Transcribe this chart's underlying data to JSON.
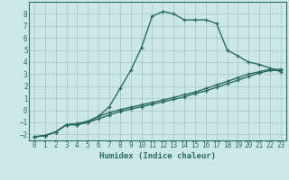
{
  "xlabel": "Humidex (Indice chaleur)",
  "bg_color": "#cce8e6",
  "line_color": "#2a6b64",
  "grid_color": "#b0cecc",
  "xlim": [
    -0.5,
    23.5
  ],
  "ylim": [
    -2.5,
    9.0
  ],
  "xticks": [
    0,
    1,
    2,
    3,
    4,
    5,
    6,
    7,
    8,
    9,
    10,
    11,
    12,
    13,
    14,
    15,
    16,
    17,
    18,
    19,
    20,
    21,
    22,
    23
  ],
  "yticks": [
    -2,
    -1,
    0,
    1,
    2,
    3,
    4,
    5,
    6,
    7,
    8
  ],
  "line1_x": [
    0,
    1,
    2,
    3,
    4,
    5,
    6,
    7,
    8,
    9,
    10,
    11,
    12,
    13,
    14,
    15,
    16,
    17,
    18,
    19,
    20,
    21,
    22,
    23
  ],
  "line1_y": [
    -2.2,
    -2.1,
    -1.8,
    -1.2,
    -1.2,
    -1.0,
    -0.5,
    0.3,
    1.8,
    3.3,
    5.2,
    7.8,
    8.2,
    8.0,
    7.5,
    7.5,
    7.5,
    7.2,
    5.0,
    4.5,
    4.0,
    3.8,
    3.5,
    3.2
  ],
  "line2_x": [
    0,
    1,
    2,
    3,
    4,
    5,
    6,
    7,
    8,
    9,
    10,
    11,
    12,
    13,
    14,
    15,
    16,
    17,
    18,
    19,
    20,
    21,
    22,
    23
  ],
  "line2_y": [
    -2.2,
    -2.1,
    -1.8,
    -1.2,
    -1.2,
    -1.0,
    -0.7,
    -0.4,
    -0.1,
    0.1,
    0.3,
    0.5,
    0.7,
    0.9,
    1.1,
    1.4,
    1.6,
    1.9,
    2.2,
    2.5,
    2.8,
    3.1,
    3.3,
    3.3
  ],
  "line3_x": [
    0,
    1,
    2,
    3,
    4,
    5,
    6,
    7,
    8,
    9,
    10,
    11,
    12,
    13,
    14,
    15,
    16,
    17,
    18,
    19,
    20,
    21,
    22,
    23
  ],
  "line3_y": [
    -2.2,
    -2.1,
    -1.8,
    -1.2,
    -1.1,
    -0.9,
    -0.5,
    -0.2,
    0.05,
    0.25,
    0.45,
    0.65,
    0.85,
    1.05,
    1.3,
    1.5,
    1.8,
    2.1,
    2.4,
    2.7,
    3.0,
    3.2,
    3.4,
    3.4
  ]
}
